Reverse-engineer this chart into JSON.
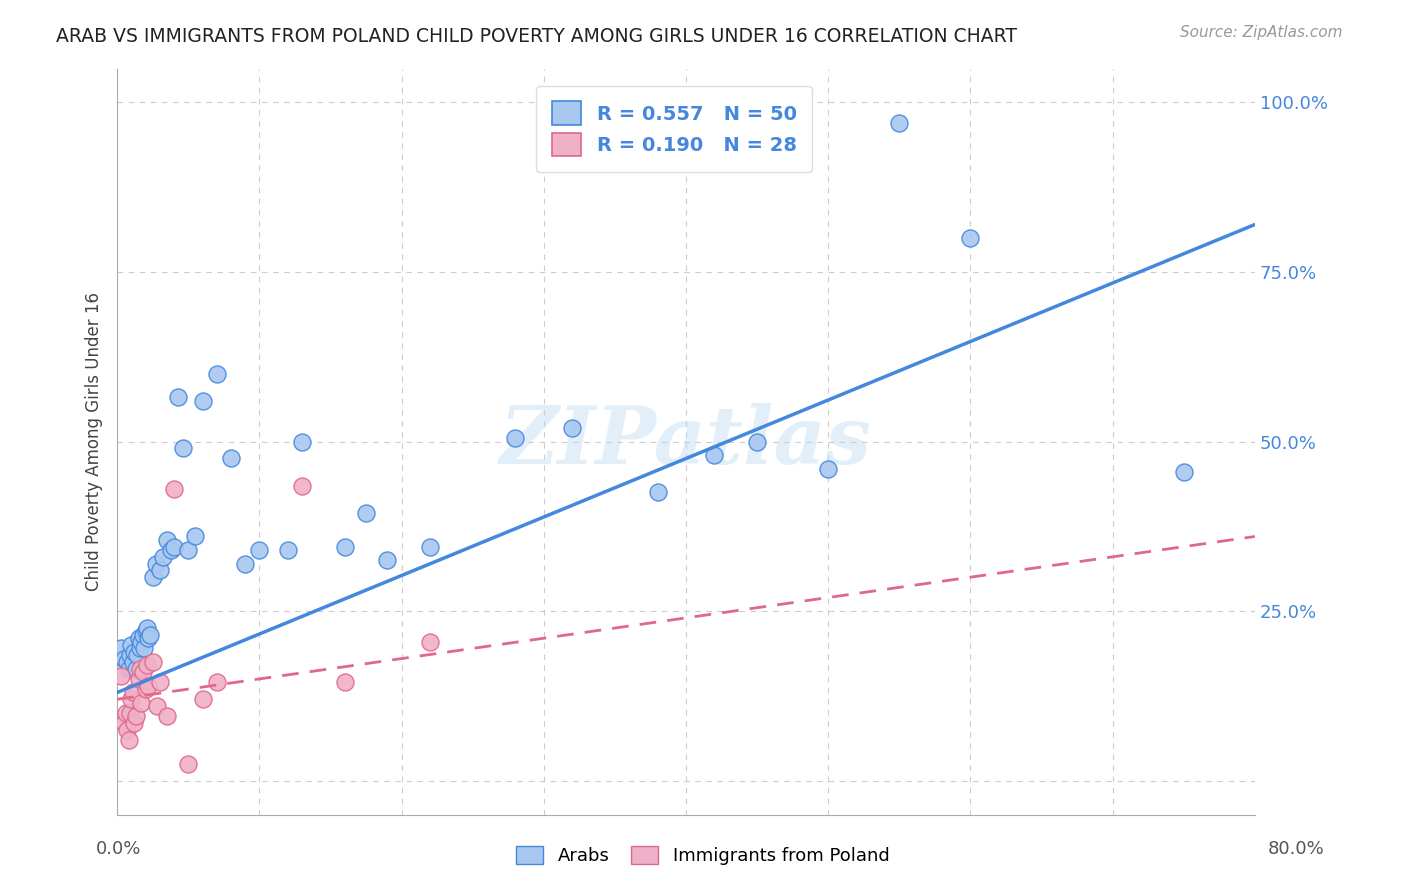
{
  "title": "ARAB VS IMMIGRANTS FROM POLAND CHILD POVERTY AMONG GIRLS UNDER 16 CORRELATION CHART",
  "source": "Source: ZipAtlas.com",
  "ylabel": "Child Poverty Among Girls Under 16",
  "xlim": [
    0.0,
    0.8
  ],
  "ylim": [
    -0.05,
    1.05
  ],
  "legend_label1": "Arabs",
  "legend_label2": "Immigrants from Poland",
  "arab_R": 0.557,
  "arab_N": 50,
  "poland_R": 0.19,
  "poland_N": 28,
  "arab_color": "#a8c8f0",
  "arab_line_color": "#4488dd",
  "poland_color": "#f0b0c8",
  "poland_line_color": "#e06888",
  "watermark": "ZIPatlas",
  "background_color": "#ffffff",
  "grid_color": "#cccccc",
  "arab_x": [
    0.003,
    0.005,
    0.007,
    0.008,
    0.009,
    0.01,
    0.011,
    0.012,
    0.013,
    0.014,
    0.015,
    0.016,
    0.017,
    0.018,
    0.019,
    0.02,
    0.021,
    0.022,
    0.023,
    0.025,
    0.027,
    0.03,
    0.032,
    0.035,
    0.038,
    0.04,
    0.043,
    0.046,
    0.05,
    0.055,
    0.06,
    0.07,
    0.08,
    0.09,
    0.1,
    0.12,
    0.13,
    0.16,
    0.175,
    0.19,
    0.22,
    0.28,
    0.32,
    0.38,
    0.42,
    0.45,
    0.5,
    0.55,
    0.6,
    0.75
  ],
  "arab_y": [
    0.195,
    0.18,
    0.175,
    0.165,
    0.185,
    0.2,
    0.175,
    0.19,
    0.165,
    0.185,
    0.21,
    0.195,
    0.205,
    0.215,
    0.195,
    0.22,
    0.225,
    0.21,
    0.215,
    0.3,
    0.32,
    0.31,
    0.33,
    0.355,
    0.34,
    0.345,
    0.565,
    0.49,
    0.34,
    0.36,
    0.56,
    0.6,
    0.475,
    0.32,
    0.34,
    0.34,
    0.5,
    0.345,
    0.395,
    0.325,
    0.345,
    0.505,
    0.52,
    0.425,
    0.48,
    0.5,
    0.46,
    0.97,
    0.8,
    0.455
  ],
  "poland_x": [
    0.003,
    0.005,
    0.006,
    0.007,
    0.008,
    0.009,
    0.01,
    0.011,
    0.012,
    0.013,
    0.015,
    0.016,
    0.017,
    0.018,
    0.02,
    0.021,
    0.022,
    0.025,
    0.028,
    0.03,
    0.035,
    0.04,
    0.05,
    0.06,
    0.07,
    0.13,
    0.16,
    0.22
  ],
  "poland_y": [
    0.155,
    0.085,
    0.1,
    0.075,
    0.06,
    0.1,
    0.12,
    0.13,
    0.085,
    0.095,
    0.15,
    0.165,
    0.115,
    0.16,
    0.135,
    0.17,
    0.14,
    0.175,
    0.11,
    0.145,
    0.095,
    0.43,
    0.025,
    0.12,
    0.145,
    0.435,
    0.145,
    0.205
  ],
  "arab_line_x": [
    0.0,
    0.8
  ],
  "arab_line_y": [
    0.13,
    0.82
  ],
  "poland_line_x": [
    0.0,
    0.8
  ],
  "poland_line_y": [
    0.12,
    0.36
  ]
}
